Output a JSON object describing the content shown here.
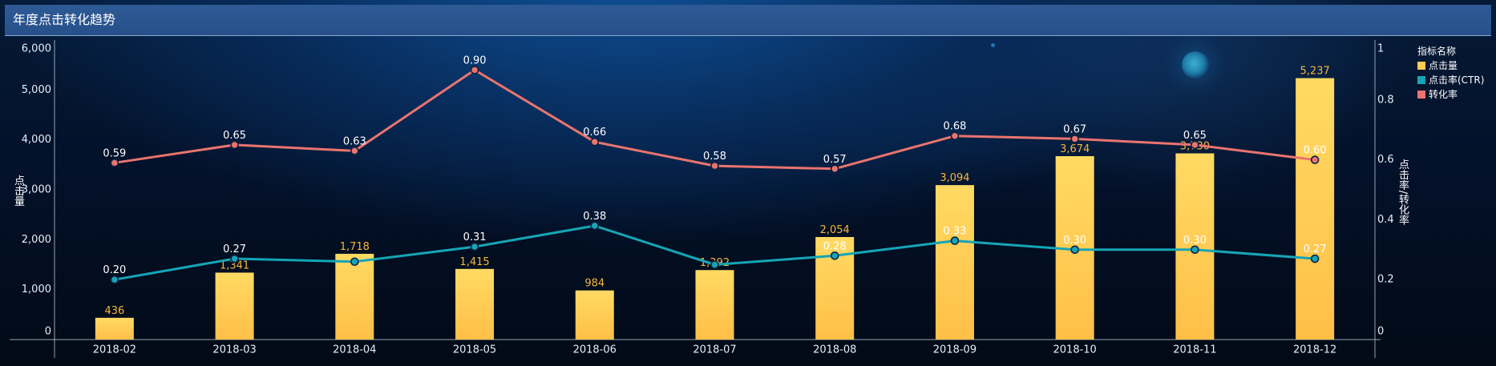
{
  "panel": {
    "title": "年度点击转化趋势"
  },
  "chart_data": {
    "type": "bar",
    "categories": [
      "2018-02",
      "2018-03",
      "2018-04",
      "2018-05",
      "2018-06",
      "2018-07",
      "2018-08",
      "2018-09",
      "2018-10",
      "2018-11",
      "2018-12"
    ],
    "series": [
      {
        "name": "点击量",
        "type": "bar",
        "axis": "left",
        "color": "#ffca50",
        "values": [
          436,
          1341,
          1718,
          1415,
          984,
          1392,
          2054,
          3094,
          3674,
          3730,
          5237
        ],
        "labels": [
          "436",
          "1,341",
          "1,718",
          "1,415",
          "984",
          "1,392",
          "2,054",
          "3,094",
          "3,674",
          "3,730",
          "5,237"
        ]
      },
      {
        "name": "点击率(CTR)",
        "type": "line",
        "axis": "right",
        "color": "#16a5b6",
        "values": [
          0.2,
          0.27,
          0.26,
          0.31,
          0.38,
          0.25,
          0.28,
          0.33,
          0.3,
          0.3,
          0.27
        ],
        "labels": [
          "0.20",
          "0.27",
          null,
          "0.31",
          "0.38",
          null,
          "0.28",
          "0.33",
          "0.30",
          "0.30",
          "0.27"
        ]
      },
      {
        "name": "转化率",
        "type": "line",
        "axis": "right",
        "color": "#ea746e",
        "values": [
          0.59,
          0.65,
          0.63,
          0.9,
          0.66,
          0.58,
          0.57,
          0.68,
          0.67,
          0.65,
          0.6
        ],
        "labels": [
          "0.59",
          "0.65",
          "0.63",
          "0.90",
          "0.66",
          "0.58",
          "0.57",
          "0.68",
          "0.67",
          "0.65",
          "0.60"
        ]
      }
    ],
    "ylabel_left": "点击量",
    "ylabel_right": "点击率/转化率",
    "ylim_left": [
      0,
      6000
    ],
    "ylim_right": [
      0,
      1
    ],
    "yticks_left": [
      "0",
      "1,000",
      "2,000",
      "3,000",
      "4,000",
      "5,000",
      "6,000"
    ],
    "yticks_right": [
      "0",
      "0.2",
      "0.4",
      "0.6",
      "0.8",
      "1"
    ],
    "legend": {
      "title": "指标名称",
      "position": "top-right"
    },
    "grid": false
  }
}
